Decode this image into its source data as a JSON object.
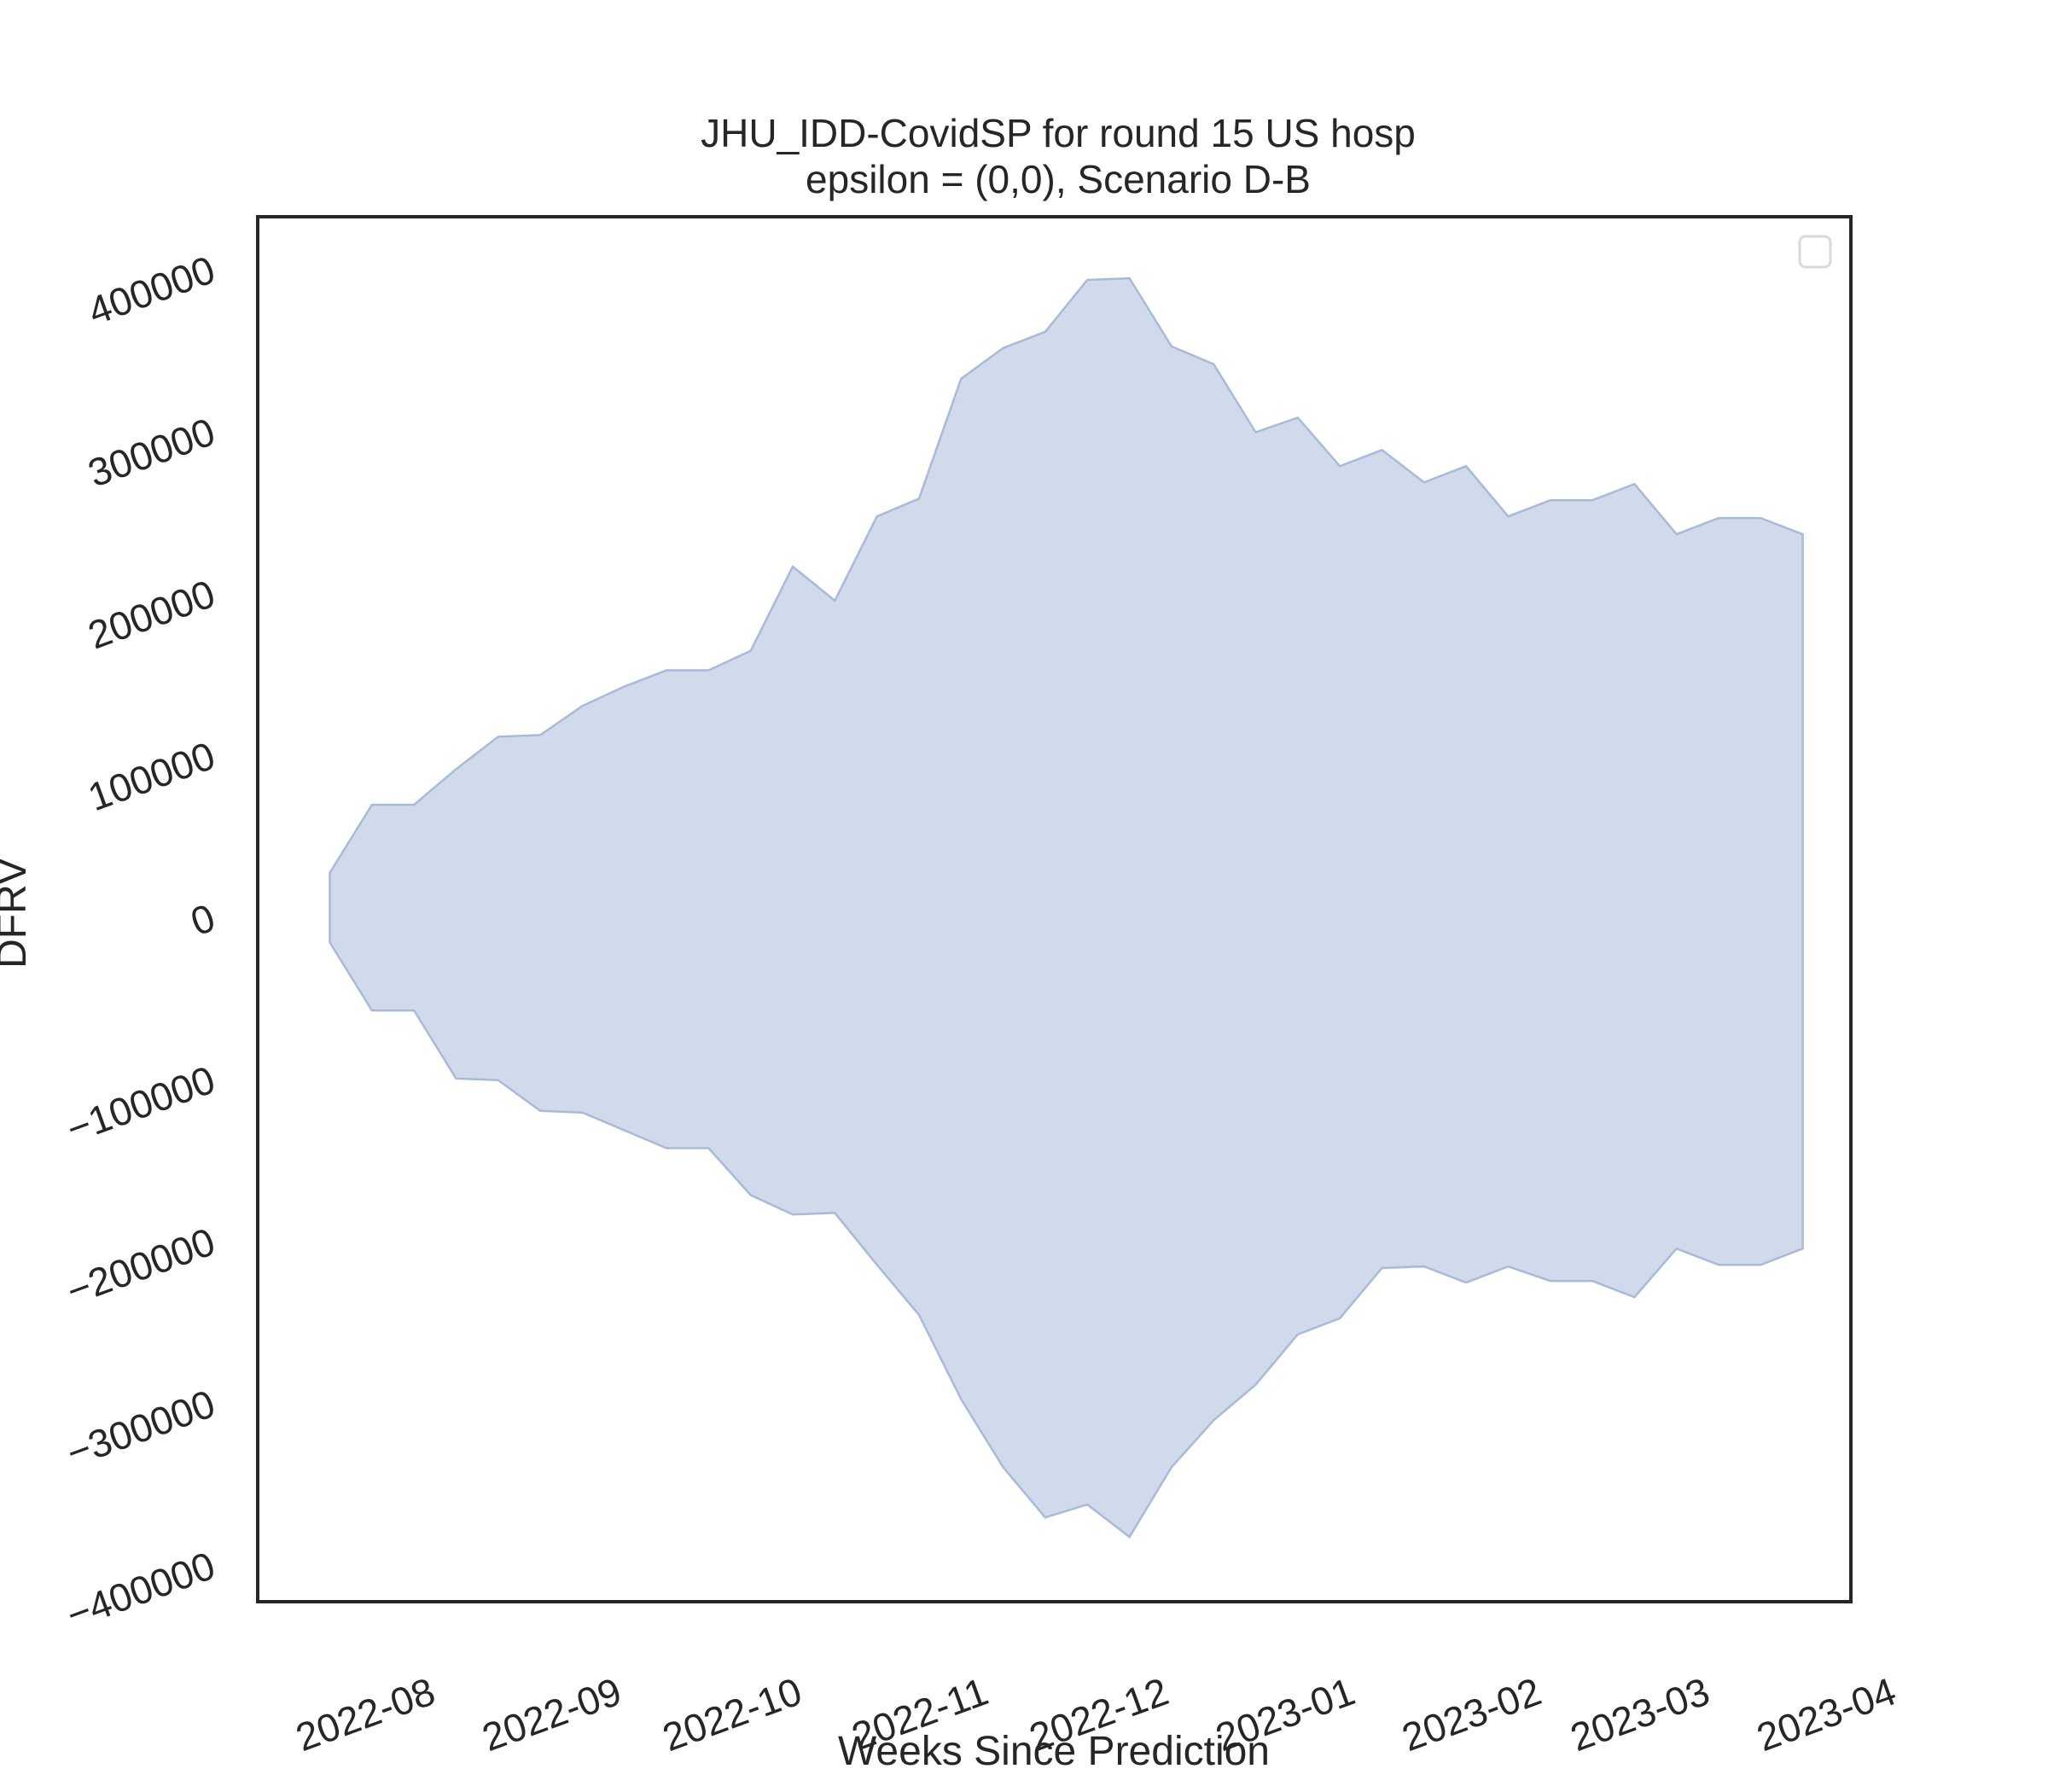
{
  "chart_data": {
    "type": "area",
    "title": "JHU_IDD-CovidSP for round 15 US hosp",
    "subtitle": "epsilon = (0,0), Scenario D-B",
    "xlabel": "Weeks Since Prediction",
    "ylabel": "DFRV",
    "x_ticks": [
      "2022-08",
      "2022-09",
      "2022-10",
      "2022-11",
      "2022-12",
      "2023-01",
      "2023-02",
      "2023-03",
      "2023-04"
    ],
    "x_tick_dates": [
      "2022-08-01",
      "2022-09-01",
      "2022-10-01",
      "2022-11-01",
      "2022-12-01",
      "2023-01-01",
      "2023-02-01",
      "2023-03-01",
      "2023-04-01"
    ],
    "y_ticks": [
      -400000,
      -300000,
      -200000,
      -100000,
      0,
      100000,
      200000,
      300000,
      400000
    ],
    "y_tick_labels": [
      "−400000",
      "−300000",
      "−200000",
      "−100000",
      "0",
      "100000",
      "200000",
      "300000",
      "400000"
    ],
    "xlim": [
      "2022-07-12",
      "2023-04-03"
    ],
    "ylim": [
      -425000,
      430000
    ],
    "grid": false,
    "legend": "top-right",
    "fill_color": "#c8d3e8",
    "edge_color": "#a9b9d8",
    "x": [
      "2022-07-24",
      "2022-07-31",
      "2022-08-07",
      "2022-08-14",
      "2022-08-21",
      "2022-08-28",
      "2022-09-04",
      "2022-09-11",
      "2022-09-18",
      "2022-09-25",
      "2022-10-02",
      "2022-10-09",
      "2022-10-16",
      "2022-10-23",
      "2022-10-30",
      "2022-11-06",
      "2022-11-13",
      "2022-11-20",
      "2022-11-27",
      "2022-12-04",
      "2022-12-11",
      "2022-12-18",
      "2022-12-25",
      "2023-01-01",
      "2023-01-08",
      "2023-01-15",
      "2023-01-22",
      "2023-01-29",
      "2023-02-05",
      "2023-02-12",
      "2023-02-19",
      "2023-02-26",
      "2023-03-05",
      "2023-03-12",
      "2023-03-19",
      "2023-03-26"
    ],
    "upper": [
      25000,
      67000,
      67000,
      89000,
      109000,
      110000,
      128000,
      140000,
      150000,
      150000,
      162000,
      214000,
      193000,
      245000,
      256000,
      330000,
      349000,
      359000,
      391000,
      392000,
      350000,
      339000,
      297000,
      306000,
      276000,
      286000,
      266000,
      276000,
      245000,
      255000,
      255000,
      265000,
      234000,
      244000,
      244000,
      234000
    ],
    "lower": [
      -18000,
      -60000,
      -60000,
      -102000,
      -103000,
      -122000,
      -123000,
      -134000,
      -145000,
      -145000,
      -174000,
      -186000,
      -185000,
      -217000,
      -248000,
      -300000,
      -342000,
      -373000,
      -365000,
      -385000,
      -342000,
      -313000,
      -291000,
      -260000,
      -250000,
      -219000,
      -218000,
      -228000,
      -218000,
      -227000,
      -227000,
      -237000,
      -207000,
      -217000,
      -217000,
      -207000
    ]
  }
}
